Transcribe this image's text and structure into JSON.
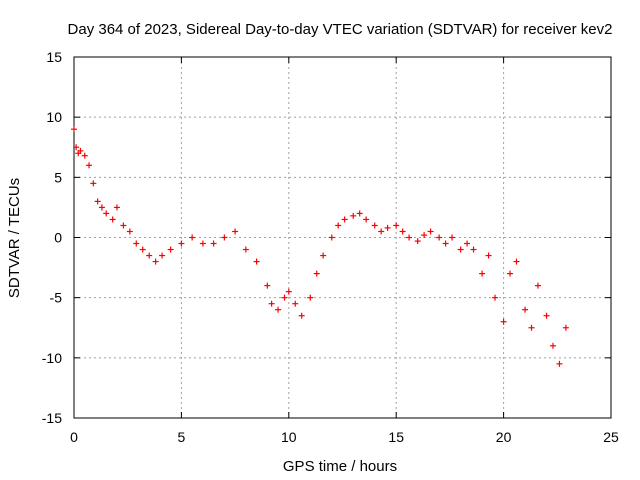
{
  "chart_data": {
    "type": "scatter",
    "title": "Day 364 of 2023, Sidereal Day-to-day VTEC variation (SDTVAR) for receiver kev2",
    "xlabel": "GPS time / hours",
    "ylabel": "SDTVAR / TECUs",
    "xlim": [
      0,
      25
    ],
    "ylim": [
      -15,
      15
    ],
    "xticks": [
      0,
      5,
      10,
      15,
      20,
      25
    ],
    "yticks": [
      -15,
      -10,
      -5,
      0,
      5,
      10,
      15
    ],
    "grid": true,
    "marker": "+",
    "series": [
      {
        "name": "SDTVAR",
        "color": "#ff0000",
        "x": [
          0.0,
          0.1,
          0.2,
          0.3,
          0.5,
          0.7,
          0.9,
          1.1,
          1.3,
          1.5,
          1.8,
          2.0,
          2.3,
          2.6,
          2.9,
          3.2,
          3.5,
          3.8,
          4.1,
          4.5,
          5.0,
          5.5,
          6.0,
          6.5,
          7.0,
          7.5,
          8.0,
          8.5,
          9.0,
          9.2,
          9.5,
          9.8,
          10.0,
          10.3,
          10.6,
          11.0,
          11.3,
          11.6,
          12.0,
          12.3,
          12.6,
          13.0,
          13.3,
          13.6,
          14.0,
          14.3,
          14.6,
          15.0,
          15.3,
          15.6,
          16.0,
          16.3,
          16.6,
          17.0,
          17.3,
          17.6,
          18.0,
          18.3,
          18.6,
          19.0,
          19.3,
          19.6,
          20.0,
          20.3,
          20.6,
          21.0,
          21.3,
          21.6,
          22.0,
          22.3,
          22.6,
          22.9
        ],
        "y": [
          9.0,
          7.5,
          7.0,
          7.2,
          6.8,
          6.0,
          4.5,
          3.0,
          2.5,
          2.0,
          1.5,
          2.5,
          1.0,
          0.5,
          -0.5,
          -1.0,
          -1.5,
          -2.0,
          -1.5,
          -1.0,
          -0.5,
          0.0,
          -0.5,
          -0.5,
          0.0,
          0.5,
          -1.0,
          -2.0,
          -4.0,
          -5.5,
          -6.0,
          -5.0,
          -4.5,
          -5.5,
          -6.5,
          -5.0,
          -3.0,
          -1.5,
          0.0,
          1.0,
          1.5,
          1.8,
          2.0,
          1.5,
          1.0,
          0.5,
          0.8,
          1.0,
          0.5,
          0.0,
          -0.3,
          0.2,
          0.5,
          0.0,
          -0.5,
          0.0,
          -1.0,
          -0.5,
          -1.0,
          -3.0,
          -1.5,
          -5.0,
          -7.0,
          -3.0,
          -2.0,
          -6.0,
          -7.5,
          -4.0,
          -6.5,
          -9.0,
          -10.5,
          -7.5
        ]
      }
    ]
  }
}
